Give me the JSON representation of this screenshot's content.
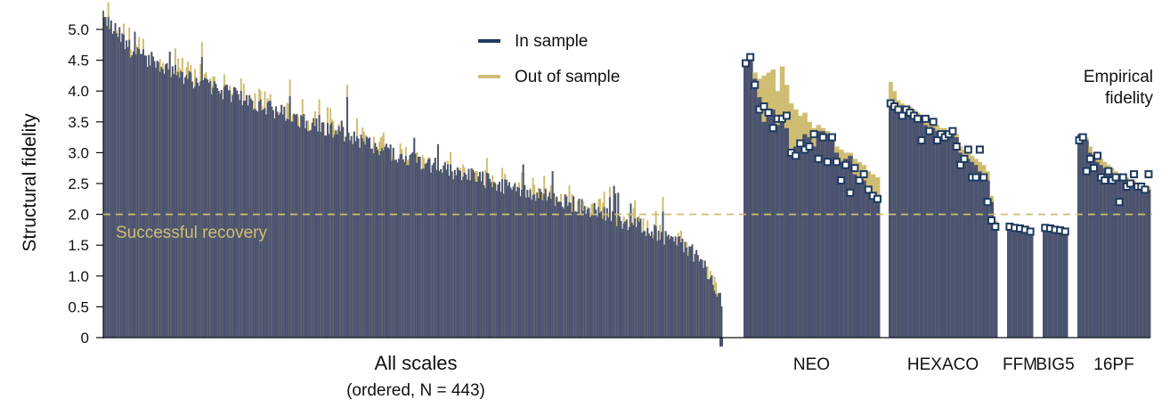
{
  "chart_data": {
    "type": "bar",
    "ylabel": "Structural fidelity",
    "ylim": [
      0,
      5.2
    ],
    "yticks": [
      "0",
      "0.5",
      "1.0",
      "1.5",
      "2.0",
      "2.5",
      "3.0",
      "3.5",
      "4.0",
      "4.5",
      "5.0"
    ],
    "colors": {
      "in_sample": "#4a5370",
      "out_of_sample": "#cfbd72",
      "marker": "#1e3a5f"
    },
    "legend": {
      "position": "top-center",
      "in_sample": "In sample",
      "out_of_sample": "Out of sample"
    },
    "threshold": {
      "value": 2.0,
      "label": "Successful recovery"
    },
    "annotation": "Empirical fidelity",
    "groups": [
      {
        "name": "All scales",
        "label": "All scales",
        "sublabel": "(ordered, N = 443)",
        "n": 443,
        "ordered": true,
        "in_sample_profile": [
          [
            0,
            5.2
          ],
          [
            0.05,
            4.6
          ],
          [
            0.15,
            4.15
          ],
          [
            0.3,
            3.6
          ],
          [
            0.45,
            3.05
          ],
          [
            0.6,
            2.6
          ],
          [
            0.75,
            2.2
          ],
          [
            0.87,
            1.8
          ],
          [
            0.94,
            1.5
          ],
          [
            0.97,
            1.2
          ],
          [
            1.0,
            0.55
          ]
        ]
      },
      {
        "name": "NEO",
        "label": "NEO",
        "in_sample": [
          4.45,
          4.55,
          4.2,
          3.9,
          3.5,
          3.65,
          3.7,
          3.45,
          3.55,
          3.4,
          3.0,
          3.1,
          3.15,
          3.3,
          3.25,
          3.1,
          3.35,
          3.35,
          3.3,
          3.2,
          3.0,
          2.85,
          2.9,
          2.95,
          2.65,
          2.6,
          2.55,
          2.45,
          2.35,
          2.3
        ],
        "out_of_sample": [
          4.5,
          4.6,
          4.3,
          4.2,
          4.25,
          4.3,
          4.35,
          4.0,
          4.4,
          4.1,
          3.8,
          3.7,
          3.6,
          3.65,
          3.5,
          3.4,
          3.45,
          3.4,
          3.35,
          3.3,
          3.1,
          3.05,
          3.0,
          3.0,
          2.9,
          2.85,
          2.8,
          2.7,
          2.65,
          2.6
        ],
        "empirical": [
          4.45,
          4.55,
          4.1,
          3.7,
          3.75,
          3.65,
          3.4,
          3.55,
          3.55,
          3.6,
          3.0,
          2.95,
          3.15,
          3.05,
          3.1,
          3.3,
          2.9,
          3.25,
          2.85,
          3.25,
          2.85,
          2.55,
          2.8,
          2.35,
          2.75,
          2.55,
          2.65,
          2.4,
          2.3,
          2.25
        ]
      },
      {
        "name": "HEXACO",
        "label": "HEXACO",
        "in_sample": [
          3.8,
          3.75,
          3.7,
          3.7,
          3.65,
          3.7,
          3.65,
          3.6,
          3.5,
          3.45,
          3.4,
          3.4,
          3.35,
          3.35,
          3.3,
          3.3,
          3.3,
          3.25,
          3.0,
          2.95,
          2.9,
          2.85,
          2.8,
          2.7,
          2.6,
          2.55,
          2.2,
          1.8
        ],
        "out_of_sample": [
          4.15,
          4.0,
          3.85,
          3.8,
          3.75,
          3.75,
          3.7,
          3.65,
          3.6,
          3.55,
          3.5,
          3.45,
          3.45,
          3.4,
          3.4,
          3.35,
          3.35,
          3.3,
          3.1,
          3.05,
          3.0,
          2.95,
          2.9,
          2.85,
          2.8,
          2.7,
          2.3,
          1.9
        ],
        "empirical": [
          3.8,
          3.75,
          3.7,
          3.6,
          3.7,
          3.65,
          3.6,
          3.55,
          3.2,
          3.55,
          3.35,
          3.5,
          3.2,
          3.3,
          3.25,
          3.3,
          3.35,
          3.1,
          2.8,
          2.9,
          3.05,
          2.6,
          2.6,
          3.05,
          2.6,
          2.2,
          1.9,
          1.8
        ]
      },
      {
        "name": "FFM",
        "label": "FFM",
        "in_sample": [
          1.8,
          1.8,
          1.78,
          1.76,
          1.74
        ],
        "out_of_sample": [
          1.82,
          1.81,
          1.8,
          1.78,
          1.76
        ],
        "empirical": [
          1.8,
          1.78,
          1.77,
          1.75,
          1.72
        ]
      },
      {
        "name": "BIG5",
        "label": "BIG5",
        "in_sample": [
          1.8,
          1.78,
          1.77,
          1.76,
          1.74
        ],
        "out_of_sample": [
          1.82,
          1.8,
          1.79,
          1.78,
          1.76
        ],
        "empirical": [
          1.78,
          1.77,
          1.75,
          1.74,
          1.72
        ]
      },
      {
        "name": "16PF",
        "label": "16PF",
        "in_sample": [
          3.3,
          3.25,
          3.2,
          3.0,
          2.9,
          2.85,
          2.8,
          2.75,
          2.7,
          2.65,
          2.6,
          2.6,
          2.55,
          2.55,
          2.5,
          2.5,
          2.45,
          2.45,
          2.4,
          2.4
        ],
        "out_of_sample": [
          3.3,
          3.3,
          3.25,
          3.1,
          3.0,
          2.95,
          2.9,
          2.85,
          2.8,
          2.75,
          2.7,
          2.65,
          2.6,
          2.6,
          2.55,
          2.55,
          2.5,
          2.5,
          2.45,
          2.45
        ],
        "empirical": [
          3.2,
          3.25,
          2.7,
          2.9,
          2.75,
          2.95,
          2.6,
          2.55,
          2.7,
          2.55,
          2.6,
          2.2,
          2.6,
          2.45,
          2.5,
          2.65,
          2.45,
          2.45,
          2.4,
          2.65
        ]
      }
    ]
  }
}
